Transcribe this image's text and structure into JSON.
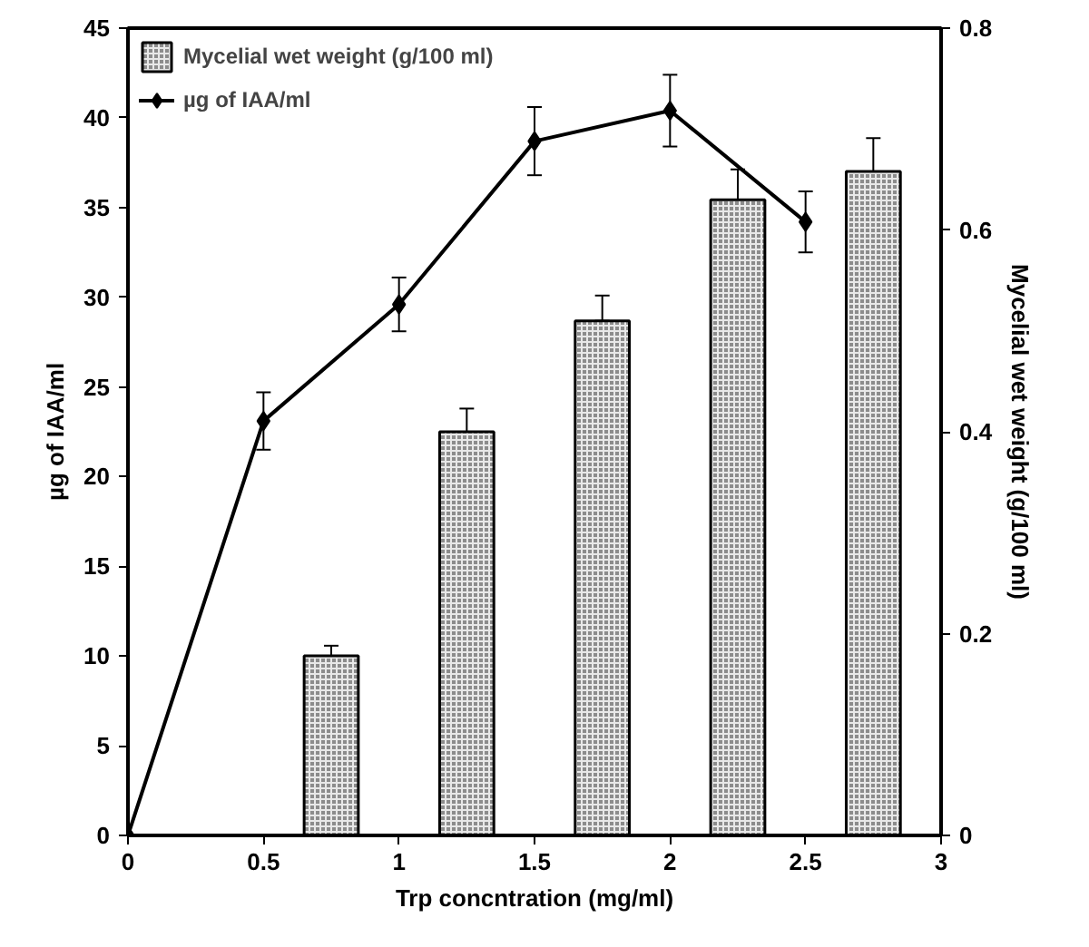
{
  "chart_data": {
    "type": "bar",
    "xlabel": "Trp concntration (mg/ml)",
    "ylabel": "µg of IAA/ml",
    "y2label": "Mycelial wet weight (g/100 ml)",
    "xlim": [
      0,
      3
    ],
    "xticks": [
      0,
      0.5,
      1,
      1.5,
      2,
      2.5,
      3
    ],
    "ylim": [
      0,
      45
    ],
    "yticks": [
      0,
      5,
      10,
      15,
      20,
      25,
      30,
      35,
      40,
      45
    ],
    "y2lim": [
      0,
      0.8
    ],
    "y2ticks": [
      0,
      0.2,
      0.4,
      0.6,
      0.8
    ],
    "series": [
      {
        "name": "Mycelial wet weight (g/100 ml)",
        "axis": "y2",
        "color": "#8c8c8c",
        "x": [
          0.75,
          1.25,
          1.75,
          2.25,
          2.75
        ],
        "values": [
          0.178,
          0.4,
          0.51,
          0.63,
          0.658
        ],
        "errors": [
          0.01,
          0.023,
          0.025,
          0.03,
          0.033
        ]
      },
      {
        "name": "µg of IAA/ml",
        "type": "line",
        "color": "#000000",
        "marker": "diamond",
        "line_style": "solid",
        "x": [
          0,
          0.5,
          1,
          1.5,
          2,
          2.5
        ],
        "values": [
          0,
          23.1,
          29.6,
          38.7,
          40.4,
          34.2
        ],
        "errors": [
          null,
          1.6,
          1.5,
          1.9,
          2.0,
          1.7
        ]
      }
    ],
    "legend": "top left",
    "grid": false
  }
}
